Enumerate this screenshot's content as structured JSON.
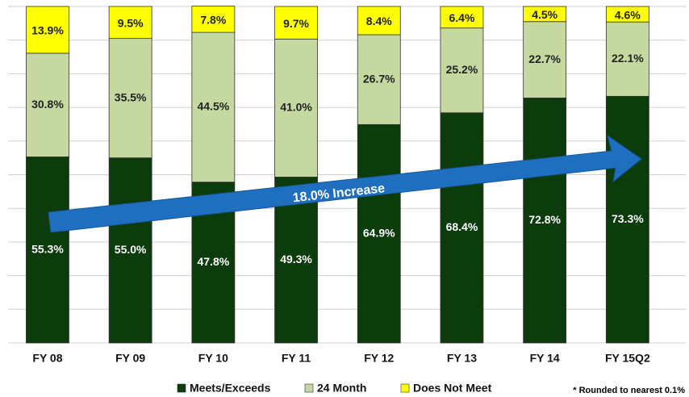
{
  "chart_data": {
    "type": "stacked_bar",
    "categories": [
      "FY 08",
      "FY 09",
      "FY 10",
      "FY 11",
      "FY 12",
      "FY 13",
      "FY 14",
      "FY 15Q2"
    ],
    "series": [
      {
        "name": "Meets/Exceeds",
        "color": "#0c3b0c",
        "values": [
          55.3,
          55.0,
          47.8,
          49.3,
          64.9,
          68.4,
          72.8,
          73.3
        ],
        "value_labels": [
          "55.3%",
          "55.0%",
          "47.8%",
          "49.3%",
          "64.9%",
          "68.4%",
          "72.8%",
          "73.3%"
        ]
      },
      {
        "name": "24 Month",
        "color": "#c4d8a0",
        "values": [
          30.8,
          35.5,
          44.5,
          41.0,
          26.7,
          25.2,
          22.7,
          22.1
        ],
        "value_labels": [
          "30.8%",
          "35.5%",
          "44.5%",
          "41.0%",
          "26.7%",
          "25.2%",
          "22.7%",
          "22.1%"
        ]
      },
      {
        "name": "Does Not Meet",
        "color": "#ffff00",
        "values": [
          13.9,
          9.5,
          7.8,
          9.7,
          8.4,
          6.4,
          4.5,
          4.6
        ],
        "value_labels": [
          "13.9%",
          "9.5%",
          "7.8%",
          "9.7%",
          "8.4%",
          "6.4%",
          "4.5%",
          "4.6%"
        ]
      }
    ],
    "ylim": [
      0,
      100
    ],
    "yticks": [
      0,
      10,
      20,
      30,
      40,
      50,
      60,
      70,
      80,
      90,
      100
    ],
    "grid": true,
    "annotation": "18.0% Increase",
    "footnote": "* Rounded to nearest  0.1%"
  }
}
